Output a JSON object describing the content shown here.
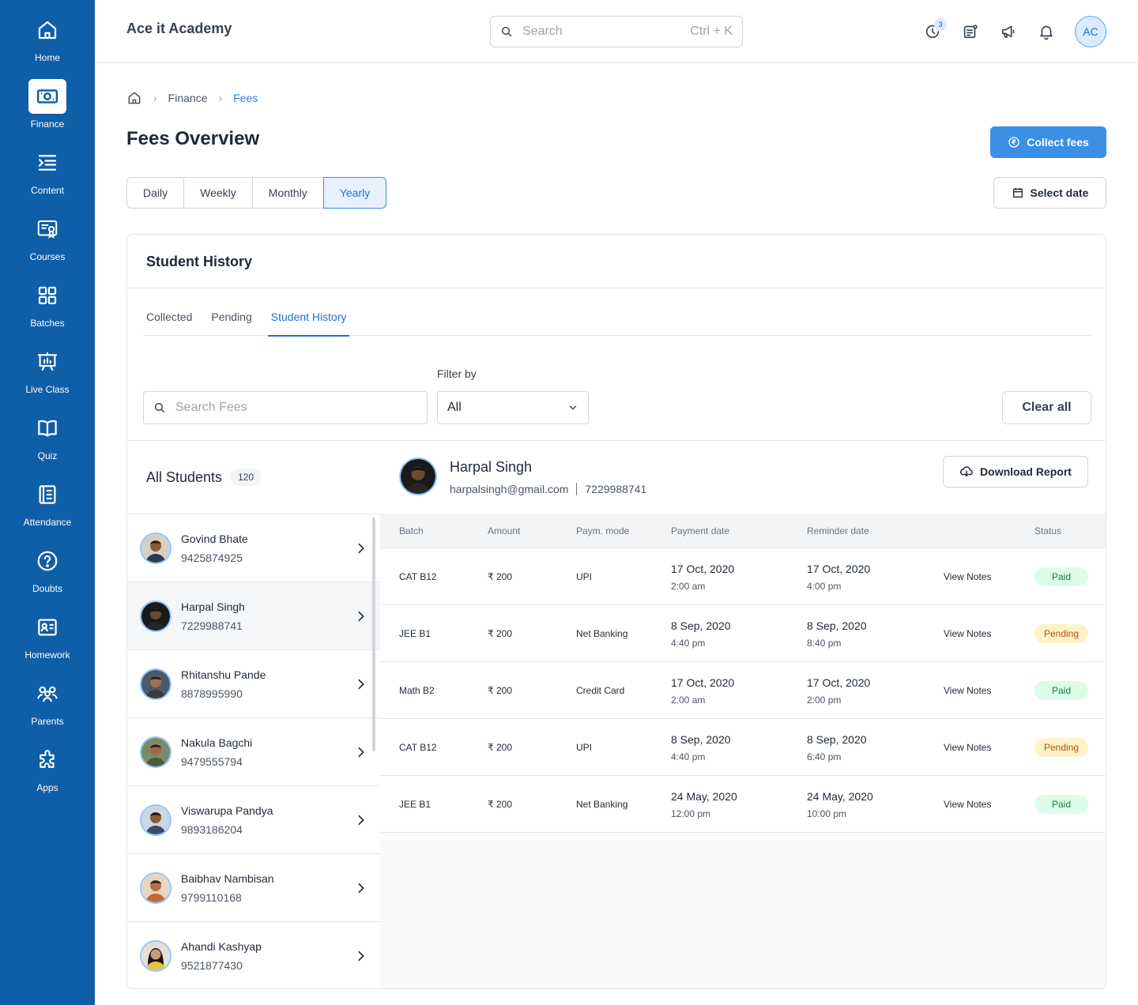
{
  "sidebar": {
    "items": [
      {
        "label": "Home",
        "icon": "home-icon"
      },
      {
        "label": "Finance",
        "icon": "finance-icon"
      },
      {
        "label": "Content",
        "icon": "content-icon"
      },
      {
        "label": "Courses",
        "icon": "courses-icon"
      },
      {
        "label": "Batches",
        "icon": "batches-icon"
      },
      {
        "label": "Live Class",
        "icon": "live-class-icon"
      },
      {
        "label": "Quiz",
        "icon": "quiz-icon"
      },
      {
        "label": "Attendance",
        "icon": "attendance-icon"
      },
      {
        "label": "Doubts",
        "icon": "doubts-icon"
      },
      {
        "label": "Homework",
        "icon": "homework-icon"
      },
      {
        "label": "Parents",
        "icon": "parents-icon"
      },
      {
        "label": "Apps",
        "icon": "apps-icon"
      }
    ],
    "active": "Finance",
    "color": "#0f5ea8"
  },
  "header": {
    "title": "Ace it Academy",
    "search_placeholder": "Search",
    "search_shortcut": "Ctrl + K",
    "badge_count": "3",
    "avatar_initials": "AC"
  },
  "breadcrumb": {
    "items": [
      "Finance",
      "Fees"
    ]
  },
  "page": {
    "title": "Fees Overview",
    "collect_label": "Collect fees",
    "select_date_label": "Select date",
    "period_tabs": [
      "Daily",
      "Weekly",
      "Monthly",
      "Yearly"
    ],
    "active_period": "Yearly",
    "accent": "#3b8fe6"
  },
  "card": {
    "title": "Student History",
    "tabs": [
      "Collected",
      "Pending",
      "Student History"
    ],
    "active_tab": "Student History",
    "filter_label": "Filter by",
    "search_placeholder": "Search Fees",
    "filter_value": "All",
    "clear_label": "Clear all"
  },
  "students": {
    "title": "All Students",
    "count": "120",
    "list": [
      {
        "name": "Govind Bhate",
        "phone": "9425874925"
      },
      {
        "name": "Harpal Singh",
        "phone": "7229988741"
      },
      {
        "name": "Rhitanshu Pande",
        "phone": "8878995990"
      },
      {
        "name": "Nakula Bagchi",
        "phone": "9479555794"
      },
      {
        "name": "Viswarupa Pandya",
        "phone": "9893186204"
      },
      {
        "name": "Baibhav Nambisan",
        "phone": "9799110168"
      },
      {
        "name": "Ahandi Kashyap",
        "phone": "9521877430"
      }
    ]
  },
  "detail": {
    "name": "Harpal Singh",
    "email": "harpalsingh@gmail.com",
    "phone": "7229988741",
    "download_label": "Download Report"
  },
  "table": {
    "headers": [
      "Batch",
      "Amount",
      "Paym. mode",
      "Payment date",
      "Reminder date",
      "Status"
    ],
    "rows": [
      {
        "batch": "CAT B12",
        "amount": "₹ 200",
        "mode": "UPI",
        "pay_date": "17 Oct, 2020",
        "pay_time": "2:00 am",
        "rem_date": "17 Oct, 2020",
        "rem_time": "4:00 pm",
        "notes": "View Notes",
        "status": "Paid"
      },
      {
        "batch": "JEE B1",
        "amount": "₹ 200",
        "mode": "Net Banking",
        "pay_date": "8 Sep, 2020",
        "pay_time": "4:40 pm",
        "rem_date": "8 Sep, 2020",
        "rem_time": "8:40 pm",
        "notes": "View Notes",
        "status": "Pending"
      },
      {
        "batch": "Math B2",
        "amount": "₹ 200",
        "mode": "Credit Card",
        "pay_date": "17 Oct, 2020",
        "pay_time": "2:00 am",
        "rem_date": "17 Oct, 2020",
        "rem_time": "2:00 pm",
        "notes": "View Notes",
        "status": "Paid"
      },
      {
        "batch": "CAT B12",
        "amount": "₹ 200",
        "mode": "UPI",
        "pay_date": "8 Sep, 2020",
        "pay_time": "4:40 pm",
        "rem_date": "8 Sep, 2020",
        "rem_time": "6:40 pm",
        "notes": "View Notes",
        "status": "Pending"
      },
      {
        "batch": "JEE B1",
        "amount": "₹ 200",
        "mode": "Net Banking",
        "pay_date": "24 May, 2020",
        "pay_time": "12:00 pm",
        "rem_date": "24 May, 2020",
        "rem_time": "10:00 pm",
        "notes": "View Notes",
        "status": "Paid"
      }
    ]
  }
}
